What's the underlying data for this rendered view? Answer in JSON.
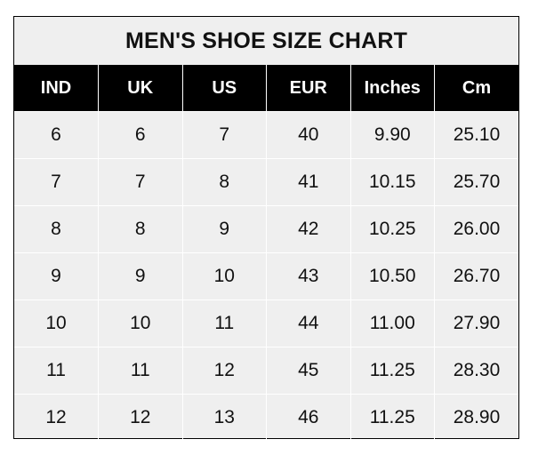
{
  "title": "MEN'S SHOE SIZE CHART",
  "columns": [
    "IND",
    "UK",
    "US",
    "EUR",
    "Inches",
    "Cm"
  ],
  "rows": [
    [
      "6",
      "6",
      "7",
      "40",
      "9.90",
      "25.10"
    ],
    [
      "7",
      "7",
      "8",
      "41",
      "10.15",
      "25.70"
    ],
    [
      "8",
      "8",
      "9",
      "42",
      "10.25",
      "26.00"
    ],
    [
      "9",
      "9",
      "10",
      "43",
      "10.50",
      "26.70"
    ],
    [
      "10",
      "10",
      "11",
      "44",
      "11.00",
      "27.90"
    ],
    [
      "11",
      "11",
      "12",
      "45",
      "11.25",
      "28.30"
    ],
    [
      "12",
      "12",
      "13",
      "46",
      "11.25",
      "28.90"
    ]
  ],
  "colors": {
    "header_bg": "#000000",
    "body_bg": "#efefef",
    "header_text": "#ffffff"
  }
}
